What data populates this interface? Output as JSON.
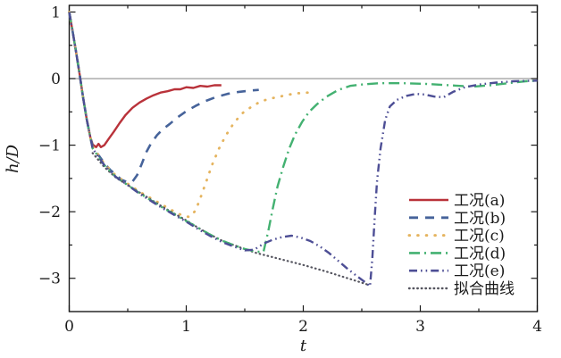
{
  "chart_data": {
    "type": "line",
    "title": "",
    "xlabel": "t",
    "ylabel": "h/D",
    "xlim": [
      0,
      4
    ],
    "ylim": [
      -3.5,
      1.1
    ],
    "grid": false,
    "zero_line": true,
    "zero_line_color": "#8f8f8f",
    "axis_color": "#1a1a1a",
    "legend_position": "right-lower",
    "x_ticks": {
      "values": [
        0,
        1,
        2,
        3,
        4
      ],
      "labels": [
        "0",
        "1",
        "2",
        "3",
        "4"
      ],
      "minor": [
        0.5,
        1.5,
        2.5,
        3.5
      ]
    },
    "y_ticks": {
      "values": [
        1,
        0,
        -1,
        -2,
        -3
      ],
      "labels": [
        "1",
        "0",
        "−1",
        "−2",
        "−3"
      ],
      "minor": [
        0.5,
        -0.5,
        -1.5,
        -2.5
      ]
    },
    "series": [
      {
        "key": "case-a",
        "name": "工况(a)",
        "color": "#b9323a",
        "style": "solid",
        "points": [
          [
            0,
            1
          ],
          [
            0.03,
            0.7
          ],
          [
            0.06,
            0.38
          ],
          [
            0.09,
            0.05
          ],
          [
            0.12,
            -0.3
          ],
          [
            0.15,
            -0.62
          ],
          [
            0.18,
            -0.88
          ],
          [
            0.2,
            -0.99
          ],
          [
            0.23,
            -1.03
          ],
          [
            0.25,
            -0.98
          ],
          [
            0.27,
            -1.03
          ],
          [
            0.3,
            -1.0
          ],
          [
            0.34,
            -0.9
          ],
          [
            0.38,
            -0.8
          ],
          [
            0.43,
            -0.67
          ],
          [
            0.48,
            -0.55
          ],
          [
            0.54,
            -0.44
          ],
          [
            0.6,
            -0.36
          ],
          [
            0.66,
            -0.3
          ],
          [
            0.72,
            -0.25
          ],
          [
            0.78,
            -0.21
          ],
          [
            0.84,
            -0.19
          ],
          [
            0.9,
            -0.16
          ],
          [
            0.95,
            -0.16
          ],
          [
            1.0,
            -0.13
          ],
          [
            1.06,
            -0.14
          ],
          [
            1.12,
            -0.11
          ],
          [
            1.18,
            -0.12
          ],
          [
            1.24,
            -0.1
          ],
          [
            1.3,
            -0.1
          ]
        ]
      },
      {
        "key": "case-b",
        "name": "工况(b)",
        "color": "#46639a",
        "style": "dashed",
        "points": [
          [
            0,
            1
          ],
          [
            0.03,
            0.7
          ],
          [
            0.06,
            0.38
          ],
          [
            0.09,
            0.05
          ],
          [
            0.12,
            -0.3
          ],
          [
            0.15,
            -0.62
          ],
          [
            0.18,
            -0.88
          ],
          [
            0.2,
            -1.02
          ],
          [
            0.25,
            -1.15
          ],
          [
            0.3,
            -1.27
          ],
          [
            0.35,
            -1.37
          ],
          [
            0.4,
            -1.45
          ],
          [
            0.45,
            -1.52
          ],
          [
            0.5,
            -1.56
          ],
          [
            0.54,
            -1.55
          ],
          [
            0.58,
            -1.45
          ],
          [
            0.62,
            -1.28
          ],
          [
            0.66,
            -1.1
          ],
          [
            0.7,
            -0.97
          ],
          [
            0.75,
            -0.85
          ],
          [
            0.8,
            -0.76
          ],
          [
            0.86,
            -0.68
          ],
          [
            0.92,
            -0.59
          ],
          [
            1.0,
            -0.49
          ],
          [
            1.08,
            -0.41
          ],
          [
            1.16,
            -0.34
          ],
          [
            1.25,
            -0.28
          ],
          [
            1.35,
            -0.23
          ],
          [
            1.45,
            -0.2
          ],
          [
            1.55,
            -0.18
          ],
          [
            1.62,
            -0.17
          ]
        ]
      },
      {
        "key": "case-c",
        "name": "工况(c)",
        "color": "#e5b45f",
        "style": "dotted",
        "points": [
          [
            0,
            1
          ],
          [
            0.03,
            0.7
          ],
          [
            0.06,
            0.38
          ],
          [
            0.09,
            0.05
          ],
          [
            0.12,
            -0.3
          ],
          [
            0.15,
            -0.62
          ],
          [
            0.18,
            -0.88
          ],
          [
            0.2,
            -1.02
          ],
          [
            0.3,
            -1.28
          ],
          [
            0.4,
            -1.46
          ],
          [
            0.5,
            -1.58
          ],
          [
            0.6,
            -1.7
          ],
          [
            0.7,
            -1.8
          ],
          [
            0.8,
            -1.9
          ],
          [
            0.9,
            -2.0
          ],
          [
            0.97,
            -2.06
          ],
          [
            1.03,
            -2.08
          ],
          [
            1.08,
            -1.98
          ],
          [
            1.12,
            -1.8
          ],
          [
            1.17,
            -1.55
          ],
          [
            1.22,
            -1.3
          ],
          [
            1.28,
            -1.05
          ],
          [
            1.34,
            -0.85
          ],
          [
            1.41,
            -0.66
          ],
          [
            1.48,
            -0.52
          ],
          [
            1.56,
            -0.42
          ],
          [
            1.64,
            -0.34
          ],
          [
            1.72,
            -0.3
          ],
          [
            1.8,
            -0.27
          ],
          [
            1.88,
            -0.24
          ],
          [
            1.96,
            -0.22
          ],
          [
            2.04,
            -0.21
          ],
          [
            2.1,
            -0.2
          ]
        ]
      },
      {
        "key": "case-d",
        "name": "工况(d)",
        "color": "#43b171",
        "style": "dashdot",
        "points": [
          [
            0,
            1
          ],
          [
            0.03,
            0.7
          ],
          [
            0.06,
            0.38
          ],
          [
            0.09,
            0.05
          ],
          [
            0.12,
            -0.3
          ],
          [
            0.15,
            -0.62
          ],
          [
            0.18,
            -0.88
          ],
          [
            0.2,
            -1.05
          ],
          [
            0.3,
            -1.3
          ],
          [
            0.4,
            -1.48
          ],
          [
            0.5,
            -1.6
          ],
          [
            0.6,
            -1.72
          ],
          [
            0.7,
            -1.83
          ],
          [
            0.8,
            -1.94
          ],
          [
            0.9,
            -2.04
          ],
          [
            1.0,
            -2.14
          ],
          [
            1.1,
            -2.24
          ],
          [
            1.2,
            -2.34
          ],
          [
            1.3,
            -2.43
          ],
          [
            1.4,
            -2.5
          ],
          [
            1.5,
            -2.56
          ],
          [
            1.6,
            -2.6
          ],
          [
            1.66,
            -2.6
          ],
          [
            1.7,
            -2.3
          ],
          [
            1.74,
            -1.95
          ],
          [
            1.78,
            -1.62
          ],
          [
            1.83,
            -1.32
          ],
          [
            1.88,
            -1.05
          ],
          [
            1.93,
            -0.84
          ],
          [
            1.99,
            -0.65
          ],
          [
            2.05,
            -0.5
          ],
          [
            2.12,
            -0.38
          ],
          [
            2.2,
            -0.27
          ],
          [
            2.3,
            -0.17
          ],
          [
            2.4,
            -0.11
          ],
          [
            2.5,
            -0.09
          ],
          [
            2.65,
            -0.07
          ],
          [
            2.85,
            -0.07
          ],
          [
            3.05,
            -0.08
          ],
          [
            3.25,
            -0.1
          ],
          [
            3.45,
            -0.12
          ],
          [
            3.6,
            -0.1
          ],
          [
            3.75,
            -0.07
          ],
          [
            3.9,
            -0.04
          ],
          [
            4.0,
            -0.03
          ]
        ]
      },
      {
        "key": "case-e",
        "name": "工况(e)",
        "color": "#4d4e95",
        "style": "dashdotdot",
        "points": [
          [
            0,
            1
          ],
          [
            0.03,
            0.7
          ],
          [
            0.06,
            0.38
          ],
          [
            0.09,
            0.05
          ],
          [
            0.12,
            -0.3
          ],
          [
            0.15,
            -0.62
          ],
          [
            0.18,
            -0.88
          ],
          [
            0.2,
            -1.05
          ],
          [
            0.3,
            -1.3
          ],
          [
            0.4,
            -1.48
          ],
          [
            0.5,
            -1.6
          ],
          [
            0.6,
            -1.73
          ],
          [
            0.7,
            -1.84
          ],
          [
            0.8,
            -1.95
          ],
          [
            0.9,
            -2.05
          ],
          [
            1.0,
            -2.15
          ],
          [
            1.1,
            -2.26
          ],
          [
            1.2,
            -2.36
          ],
          [
            1.3,
            -2.45
          ],
          [
            1.4,
            -2.52
          ],
          [
            1.5,
            -2.58
          ],
          [
            1.58,
            -2.57
          ],
          [
            1.66,
            -2.48
          ],
          [
            1.74,
            -2.42
          ],
          [
            1.82,
            -2.38
          ],
          [
            1.9,
            -2.36
          ],
          [
            1.98,
            -2.39
          ],
          [
            2.06,
            -2.44
          ],
          [
            2.14,
            -2.52
          ],
          [
            2.22,
            -2.62
          ],
          [
            2.3,
            -2.74
          ],
          [
            2.38,
            -2.86
          ],
          [
            2.46,
            -2.97
          ],
          [
            2.53,
            -3.06
          ],
          [
            2.57,
            -3.12
          ],
          [
            2.59,
            -2.7
          ],
          [
            2.61,
            -2.1
          ],
          [
            2.63,
            -1.55
          ],
          [
            2.66,
            -1.05
          ],
          [
            2.7,
            -0.62
          ],
          [
            2.74,
            -0.42
          ],
          [
            2.8,
            -0.32
          ],
          [
            2.88,
            -0.26
          ],
          [
            2.96,
            -0.23
          ],
          [
            3.04,
            -0.24
          ],
          [
            3.12,
            -0.27
          ],
          [
            3.2,
            -0.28
          ],
          [
            3.28,
            -0.2
          ],
          [
            3.38,
            -0.13
          ],
          [
            3.5,
            -0.09
          ],
          [
            3.65,
            -0.06
          ],
          [
            3.8,
            -0.04
          ],
          [
            4.0,
            -0.03
          ]
        ]
      },
      {
        "key": "fit-curve",
        "name": "拟合曲线",
        "color": "#55555f",
        "style": "fine-dotted",
        "points": [
          [
            0.2,
            -1.12
          ],
          [
            0.3,
            -1.33
          ],
          [
            0.4,
            -1.49
          ],
          [
            0.5,
            -1.6
          ],
          [
            0.6,
            -1.71
          ],
          [
            0.7,
            -1.82
          ],
          [
            0.8,
            -1.93
          ],
          [
            0.9,
            -2.03
          ],
          [
            1.0,
            -2.13
          ],
          [
            1.1,
            -2.24
          ],
          [
            1.2,
            -2.34
          ],
          [
            1.3,
            -2.43
          ],
          [
            1.45,
            -2.53
          ],
          [
            1.6,
            -2.62
          ],
          [
            1.8,
            -2.71
          ],
          [
            2.0,
            -2.8
          ],
          [
            2.2,
            -2.9
          ],
          [
            2.4,
            -3.01
          ],
          [
            2.56,
            -3.1
          ]
        ]
      }
    ]
  }
}
